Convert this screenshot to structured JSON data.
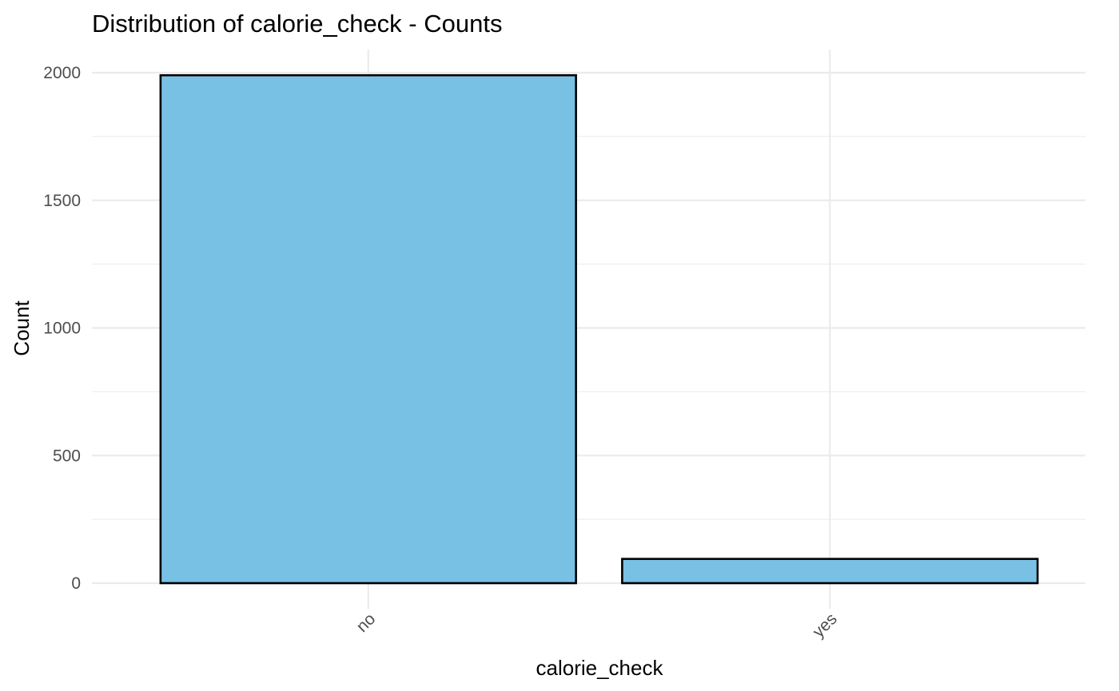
{
  "chart_data": {
    "type": "bar",
    "title": "Distribution of calorie_check - Counts",
    "xlabel": "calorie_check",
    "ylabel": "Count",
    "categories": [
      "no",
      "yes"
    ],
    "values": [
      1990,
      95
    ],
    "ylim": [
      0,
      2000
    ],
    "yticks": [
      0,
      500,
      1000,
      1500,
      2000
    ],
    "bar_fill": "#79C1E4",
    "bar_outline": "#000000",
    "grid_color": "#EBEBEB",
    "grid": true,
    "legend": "none",
    "x_tick_rotation": "45deg"
  }
}
